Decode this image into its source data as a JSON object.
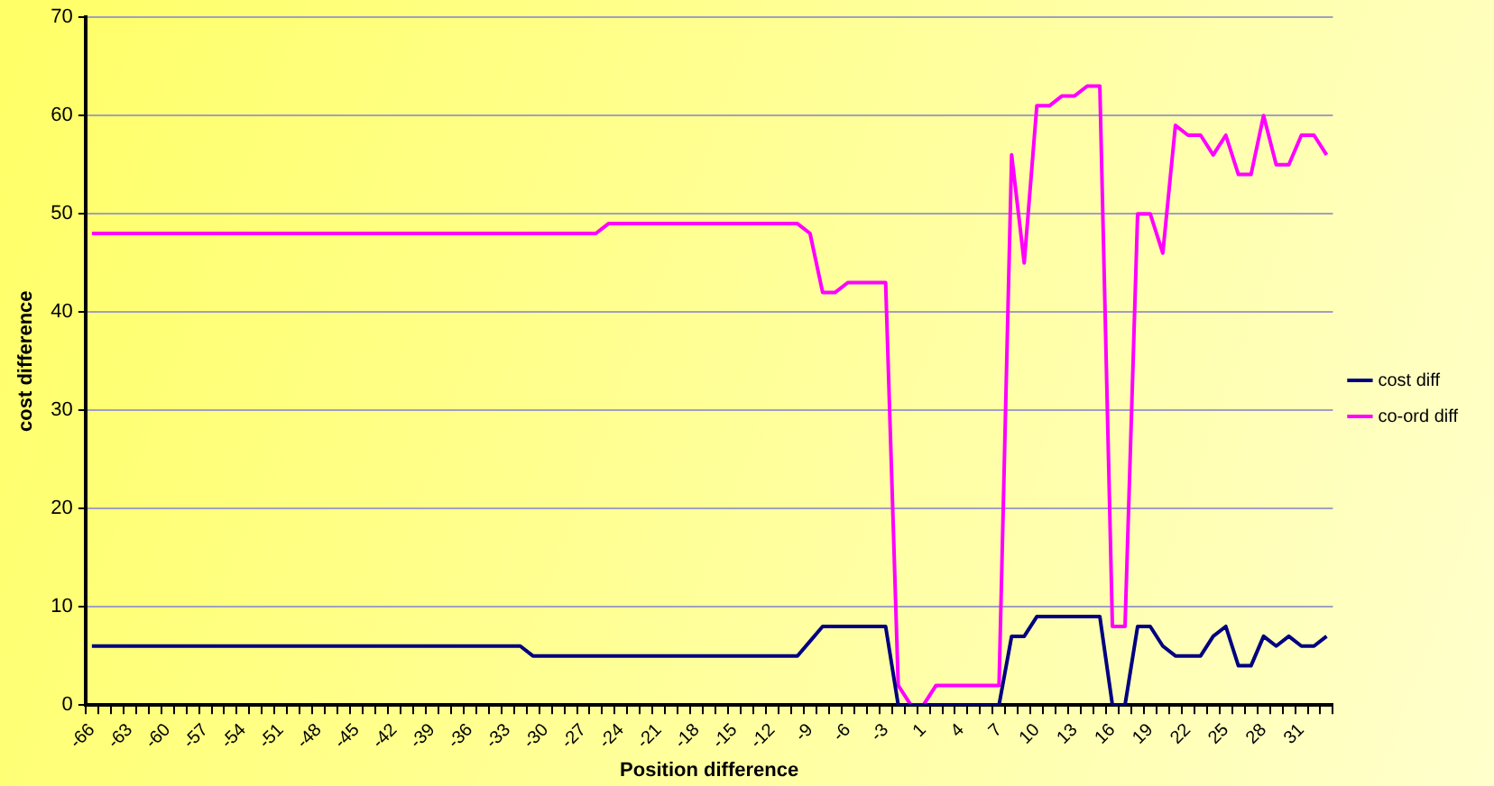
{
  "chart_data": {
    "type": "line",
    "xlabel": "Position difference",
    "ylabel": "cost difference",
    "categories": [
      "-66",
      null,
      null,
      "-63",
      null,
      null,
      "-60",
      null,
      null,
      "-57",
      null,
      null,
      "-54",
      null,
      null,
      "-51",
      null,
      null,
      "-48",
      null,
      null,
      "-45",
      null,
      null,
      "-42",
      null,
      null,
      "-39",
      null,
      null,
      "-36",
      null,
      null,
      "-33",
      null,
      null,
      "-30",
      null,
      null,
      "-27",
      null,
      null,
      "-24",
      null,
      null,
      "-21",
      null,
      null,
      "-18",
      null,
      null,
      "-15",
      null,
      null,
      "-12",
      null,
      null,
      "-9",
      null,
      null,
      "-6",
      null,
      null,
      "-3",
      null,
      null,
      "1",
      null,
      null,
      "4",
      null,
      null,
      "7",
      null,
      null,
      "10",
      null,
      null,
      "13",
      null,
      null,
      "16",
      null,
      null,
      "19",
      null,
      null,
      "22",
      null,
      null,
      "25",
      null,
      null,
      "28",
      null,
      null,
      "31",
      null,
      null
    ],
    "series": [
      {
        "name": "cost diff",
        "color": "#000080",
        "values": [
          6,
          6,
          6,
          6,
          6,
          6,
          6,
          6,
          6,
          6,
          6,
          6,
          6,
          6,
          6,
          6,
          6,
          6,
          6,
          6,
          6,
          6,
          6,
          6,
          6,
          6,
          6,
          6,
          6,
          6,
          6,
          6,
          6,
          6,
          6,
          5,
          5,
          5,
          5,
          5,
          5,
          5,
          5,
          5,
          5,
          5,
          5,
          5,
          5,
          5,
          5,
          5,
          5,
          5,
          5,
          5,
          5,
          6.5,
          8,
          8,
          8,
          8,
          8,
          8,
          0,
          0,
          0,
          0,
          0,
          0,
          0,
          0,
          0,
          7,
          7,
          9,
          9,
          9,
          9,
          9,
          9,
          0,
          0,
          8,
          8,
          6,
          5,
          5,
          5,
          7,
          8,
          4,
          4,
          7,
          6,
          7,
          6,
          6,
          7
        ]
      },
      {
        "name": "co-ord diff",
        "color": "#ff00ff",
        "values": [
          48,
          48,
          48,
          48,
          48,
          48,
          48,
          48,
          48,
          48,
          48,
          48,
          48,
          48,
          48,
          48,
          48,
          48,
          48,
          48,
          48,
          48,
          48,
          48,
          48,
          48,
          48,
          48,
          48,
          48,
          48,
          48,
          48,
          48,
          48,
          48,
          48,
          48,
          48,
          48,
          48,
          49,
          49,
          49,
          49,
          49,
          49,
          49,
          49,
          49,
          49,
          49,
          49,
          49,
          49,
          49,
          49,
          48,
          42,
          42,
          43,
          43,
          43,
          43,
          2,
          0,
          0,
          2,
          2,
          2,
          2,
          2,
          2,
          56,
          45,
          61,
          61,
          62,
          62,
          63,
          63,
          8,
          8,
          50,
          50,
          46,
          59,
          58,
          58,
          56,
          58,
          54,
          54,
          60,
          55,
          55,
          58,
          58,
          56
        ]
      }
    ],
    "ylim": [
      0,
      70
    ],
    "yticks": [
      0,
      10,
      20,
      30,
      40,
      50,
      60,
      70
    ],
    "grid": "y",
    "legend": "right",
    "marker": "none",
    "line_style": "solid"
  }
}
